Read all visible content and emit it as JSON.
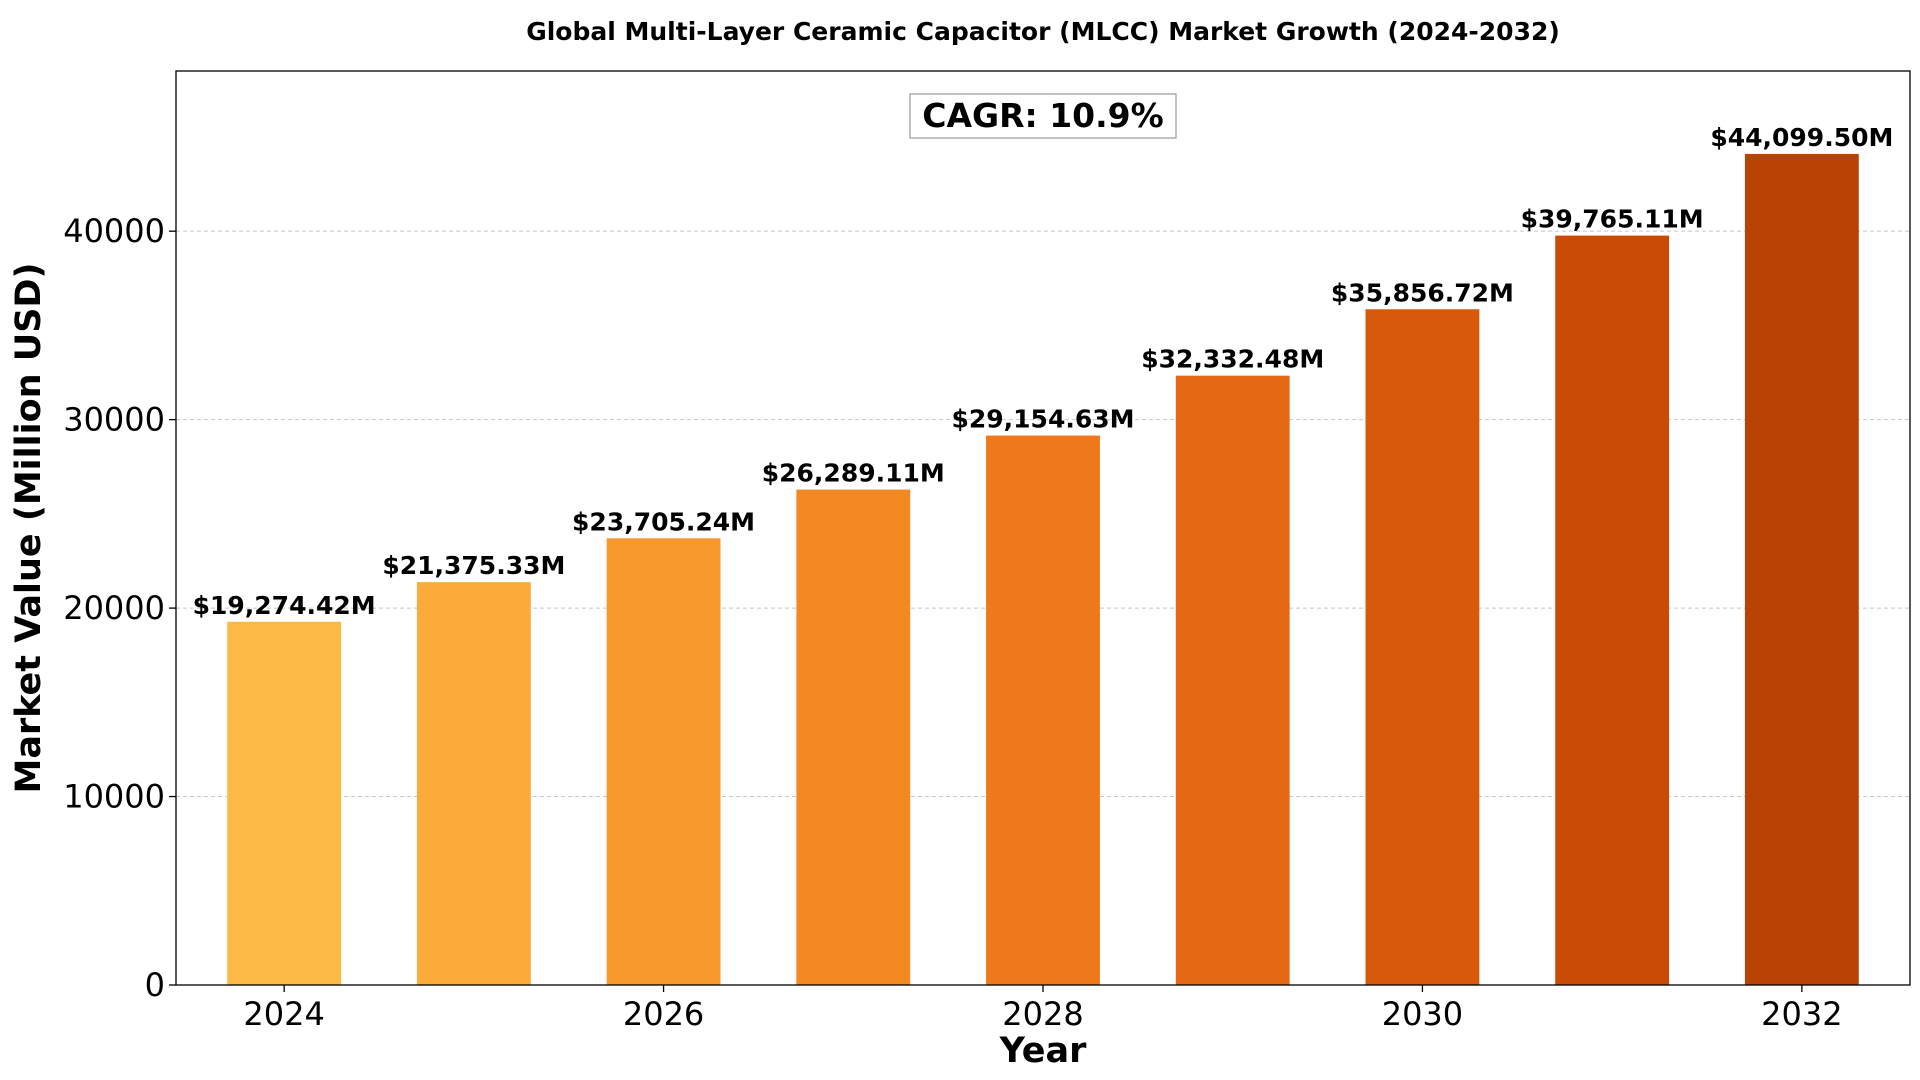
{
  "chart_data": {
    "type": "bar",
    "title": "Global Multi-Layer Ceramic Capacitor (MLCC) Market Growth (2024-2032)",
    "xlabel": "Year",
    "ylabel": "Market Value (Million USD)",
    "categories": [
      2024,
      2025,
      2026,
      2027,
      2028,
      2029,
      2030,
      2031,
      2032
    ],
    "values": [
      19274.42,
      21375.33,
      23705.24,
      26289.11,
      29154.63,
      32332.48,
      35856.72,
      39765.11,
      44099.5
    ],
    "data_labels": [
      "$19,274.42M",
      "$21,375.33M",
      "$23,705.24M",
      "$26,289.11M",
      "$29,154.63M",
      "$32,332.48M",
      "$35,856.72M",
      "$39,765.11M",
      "$44,099.50M"
    ],
    "bar_colors": [
      "#fdb945",
      "#fcaa3a",
      "#f9982d",
      "#f48823",
      "#ee781b",
      "#e56814",
      "#d9590b",
      "#ca4b03",
      "#b84304"
    ],
    "x_ticks": [
      2024,
      2026,
      2028,
      2030,
      2032
    ],
    "y_ticks": [
      0,
      10000,
      20000,
      30000,
      40000
    ],
    "ylim": [
      0,
      48500
    ],
    "xlim": [
      2023.43,
      2032.57
    ],
    "grid": "horizontal dashed",
    "annotation": "CAGR: 10.9%"
  }
}
